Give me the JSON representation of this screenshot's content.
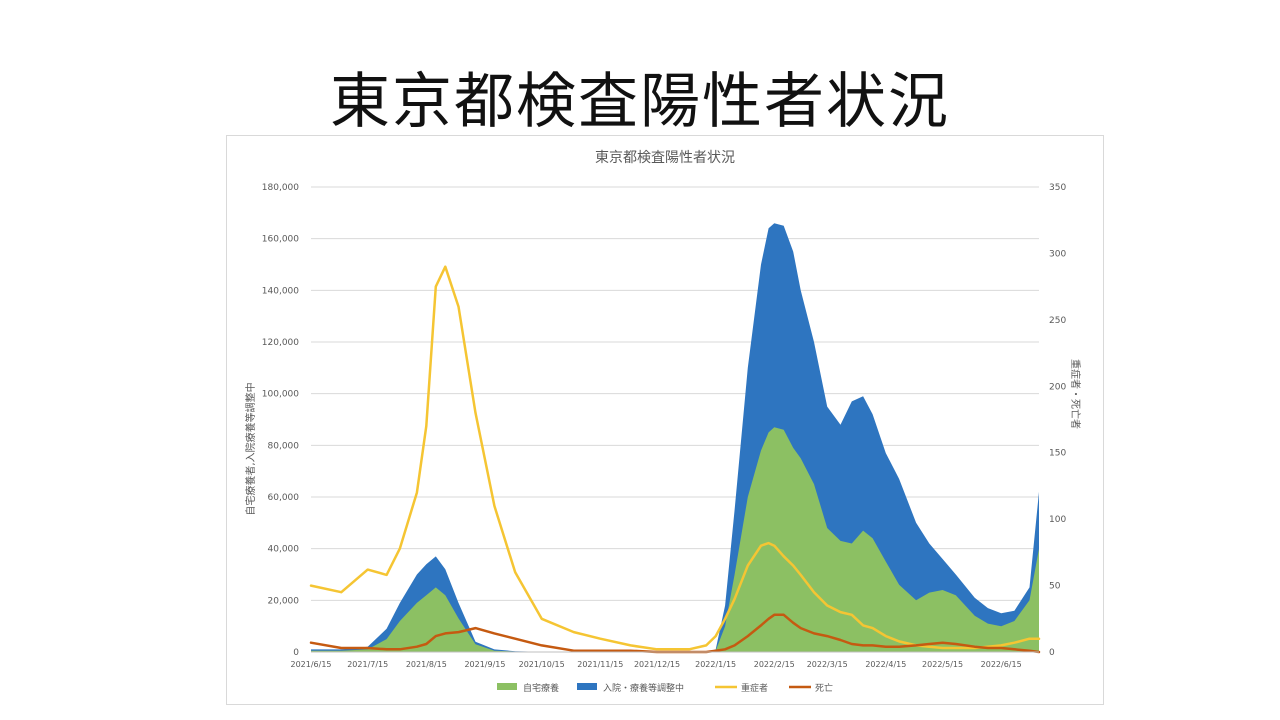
{
  "slide": {
    "title": "東京都検査陽性者状況"
  },
  "chart_data": {
    "type": "area",
    "title": "東京都検査陽性者状況",
    "ylabel": "自宅療養者,入院療養等調整中",
    "y2label": "重症者・死亡者",
    "ylim": [
      0,
      180000
    ],
    "y2lim": [
      0,
      350
    ],
    "grid": true,
    "legend_position": "bottom",
    "y_ticks": [
      "0",
      "20,000",
      "40,000",
      "60,000",
      "80,000",
      "100,000",
      "120,000",
      "140,000",
      "160,000",
      "180,000"
    ],
    "y2_ticks": [
      "0",
      "50",
      "100",
      "150",
      "200",
      "250",
      "300",
      "350"
    ],
    "x_ticks": [
      "2021/6/15",
      "2021/7/15",
      "2021/8/15",
      "2021/9/15",
      "2021/10/15",
      "2021/11/15",
      "2021/12/15",
      "2022/1/15",
      "2022/2/15",
      "2022/3/15",
      "2022/4/15",
      "2022/5/15",
      "2022/6/15"
    ],
    "x": [
      "2021/6/15",
      "2021/7/1",
      "2021/7/15",
      "2021/7/25",
      "2021/8/1",
      "2021/8/10",
      "2021/8/15",
      "2021/8/20",
      "2021/8/25",
      "2021/9/1",
      "2021/9/10",
      "2021/9/20",
      "2021/10/1",
      "2021/10/15",
      "2021/11/1",
      "2021/11/15",
      "2021/12/1",
      "2021/12/15",
      "2022/1/1",
      "2022/1/10",
      "2022/1/15",
      "2022/1/20",
      "2022/1/25",
      "2022/2/1",
      "2022/2/8",
      "2022/2/12",
      "2022/2/15",
      "2022/2/20",
      "2022/2/25",
      "2022/3/1",
      "2022/3/8",
      "2022/3/15",
      "2022/3/22",
      "2022/3/28",
      "2022/4/3",
      "2022/4/8",
      "2022/4/15",
      "2022/4/22",
      "2022/5/1",
      "2022/5/8",
      "2022/5/15",
      "2022/5/22",
      "2022/6/1",
      "2022/6/8",
      "2022/6/15",
      "2022/6/22",
      "2022/6/30",
      "2022/7/5"
    ],
    "series": [
      {
        "name": "自宅療養",
        "type": "area",
        "axis": "left",
        "color": "#8cc063",
        "values": [
          500,
          500,
          1000,
          5000,
          12000,
          19000,
          22000,
          25000,
          22000,
          13000,
          3000,
          500,
          200,
          100,
          0,
          0,
          0,
          0,
          0,
          0,
          500,
          10000,
          30000,
          60000,
          78000,
          85000,
          87000,
          86000,
          79000,
          75000,
          65000,
          48000,
          43000,
          42000,
          47000,
          44000,
          35000,
          26000,
          20000,
          23000,
          24000,
          22000,
          14000,
          11000,
          10000,
          12000,
          20000,
          40000
        ]
      },
      {
        "name": "入院・療養等調整中",
        "type": "area",
        "axis": "left",
        "color": "#2e75c0",
        "values": [
          1000,
          1000,
          2000,
          9000,
          19000,
          30000,
          34000,
          37000,
          32000,
          19000,
          4000,
          1000,
          300,
          100,
          0,
          0,
          0,
          0,
          0,
          0,
          1000,
          18000,
          55000,
          110000,
          150000,
          164000,
          166000,
          165000,
          155000,
          140000,
          120000,
          95000,
          88000,
          97000,
          99000,
          92000,
          77000,
          67000,
          50000,
          42000,
          36000,
          30000,
          21000,
          17000,
          15000,
          16000,
          25000,
          62000
        ]
      },
      {
        "name": "重症者",
        "type": "line",
        "axis": "right",
        "color": "#f5c533",
        "values": [
          50,
          45,
          62,
          58,
          78,
          120,
          170,
          275,
          290,
          260,
          180,
          110,
          60,
          25,
          15,
          10,
          5,
          2,
          2,
          5,
          12,
          25,
          40,
          65,
          80,
          82,
          80,
          72,
          65,
          58,
          45,
          35,
          30,
          28,
          20,
          18,
          12,
          8,
          5,
          4,
          3,
          3,
          3,
          4,
          5,
          7,
          10,
          10
        ]
      },
      {
        "name": "死亡",
        "type": "line",
        "axis": "right",
        "color": "#c55a11",
        "values": [
          7,
          3,
          3,
          2,
          2,
          4,
          6,
          12,
          14,
          15,
          18,
          14,
          10,
          5,
          1,
          1,
          1,
          0,
          0,
          0,
          1,
          2,
          5,
          12,
          20,
          25,
          28,
          28,
          22,
          18,
          14,
          12,
          9,
          6,
          5,
          5,
          4,
          4,
          5,
          6,
          7,
          6,
          4,
          3,
          3,
          2,
          1,
          0
        ]
      }
    ]
  }
}
